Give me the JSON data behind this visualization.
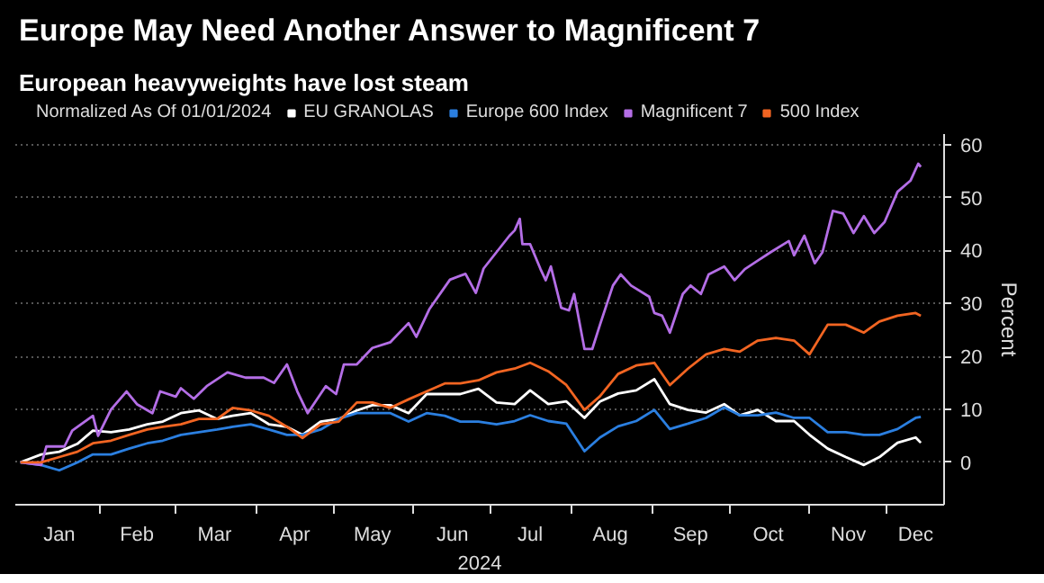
{
  "chart_data": {
    "type": "line",
    "title": "Europe May Need Another Answer to Magnificent 7",
    "subtitle": "European heavyweights have lost steam",
    "legend_title": "Normalized As Of 01/01/2024",
    "xlabel": "2024",
    "ylabel": "Percent",
    "x": [
      "2024-01-01",
      "2024-01-09",
      "2024-01-16",
      "2024-01-23",
      "2024-01-29",
      "2024-02-05",
      "2024-02-12",
      "2024-02-19",
      "2024-02-25",
      "2024-03-03",
      "2024-03-10",
      "2024-03-17",
      "2024-03-23",
      "2024-03-30",
      "2024-04-06",
      "2024-04-13",
      "2024-04-19",
      "2024-04-26",
      "2024-05-03",
      "2024-05-10",
      "2024-05-16",
      "2024-05-23",
      "2024-05-30",
      "2024-06-06",
      "2024-06-13",
      "2024-06-19",
      "2024-06-26",
      "2024-07-03",
      "2024-07-10",
      "2024-07-16",
      "2024-07-23",
      "2024-07-30",
      "2024-08-06",
      "2024-08-12",
      "2024-08-19",
      "2024-08-26",
      "2024-09-02",
      "2024-09-08",
      "2024-09-15",
      "2024-09-22",
      "2024-09-29",
      "2024-10-05",
      "2024-10-12",
      "2024-10-19",
      "2024-10-26",
      "2024-11-01",
      "2024-11-08",
      "2024-11-15",
      "2024-11-22",
      "2024-11-28",
      "2024-12-05",
      "2024-12-12",
      "2024-12-14"
    ],
    "series": [
      {
        "name": "EU GRANOLAS",
        "color": "#ffffff",
        "values": [
          0,
          1.5,
          2,
          3.5,
          6,
          5.7,
          6.2,
          7.2,
          7.7,
          9.3,
          9.8,
          8.2,
          8.8,
          9.3,
          7.2,
          6.7,
          5.2,
          7.7,
          8.2,
          9.8,
          10.8,
          10.8,
          9.3,
          12.9,
          12.9,
          12.9,
          13.9,
          11.3,
          11,
          13.6,
          11,
          11.5,
          8.4,
          11.5,
          13,
          13.6,
          15.7,
          11,
          9.9,
          9.4,
          11,
          8.9,
          9.9,
          7.8,
          7.8,
          5.2,
          2.6,
          1,
          -0.5,
          1,
          3.7,
          4.7,
          3.7
        ]
      },
      {
        "name": "Europe 600 Index",
        "color": "#2b7fe0",
        "values": [
          0,
          -0.5,
          -1.5,
          0,
          1.5,
          1.5,
          2.6,
          3.6,
          4.1,
          5.2,
          5.7,
          6.2,
          6.7,
          7.2,
          6.2,
          5.2,
          5.2,
          6.2,
          8.2,
          9.3,
          9.3,
          9.3,
          7.7,
          9.3,
          8.8,
          7.7,
          7.7,
          7.2,
          7.8,
          8.9,
          7.8,
          7.3,
          2.1,
          4.7,
          6.8,
          7.8,
          9.9,
          6.3,
          7.3,
          8.4,
          10.4,
          8.9,
          8.9,
          9.4,
          8.4,
          8.4,
          5.7,
          5.7,
          5.2,
          5.2,
          6.3,
          8.4,
          8.6
        ]
      },
      {
        "name": "Magnificent 7",
        "color": "#b46ee6",
        "x": [
          "2024-01-01",
          "2024-01-09",
          "2024-01-11",
          "2024-01-18",
          "2024-01-21",
          "2024-01-29",
          "2024-01-31",
          "2024-02-05",
          "2024-02-11",
          "2024-02-15",
          "2024-02-21",
          "2024-02-24",
          "2024-03-01",
          "2024-03-03",
          "2024-03-08",
          "2024-03-13",
          "2024-03-21",
          "2024-03-28",
          "2024-04-04",
          "2024-04-08",
          "2024-04-13",
          "2024-04-17",
          "2024-04-21",
          "2024-04-28",
          "2024-05-02",
          "2024-05-05",
          "2024-05-10",
          "2024-05-16",
          "2024-05-23",
          "2024-05-30",
          "2024-06-02",
          "2024-06-07",
          "2024-06-15",
          "2024-06-21",
          "2024-06-25",
          "2024-06-28",
          "2024-07-08",
          "2024-07-10",
          "2024-07-12",
          "2024-07-13",
          "2024-07-16",
          "2024-07-20",
          "2024-07-22",
          "2024-07-24",
          "2024-07-28",
          "2024-07-31",
          "2024-08-02",
          "2024-08-06",
          "2024-08-09",
          "2024-08-12",
          "2024-08-17",
          "2024-08-20",
          "2024-08-24",
          "2024-08-31",
          "2024-09-02",
          "2024-09-05",
          "2024-09-08",
          "2024-09-13",
          "2024-09-16",
          "2024-09-20",
          "2024-09-23",
          "2024-09-29",
          "2024-10-03",
          "2024-10-07",
          "2024-10-12",
          "2024-10-17",
          "2024-10-24",
          "2024-10-26",
          "2024-10-30",
          "2024-11-03",
          "2024-11-06",
          "2024-11-10",
          "2024-11-14",
          "2024-11-18",
          "2024-11-22",
          "2024-11-26",
          "2024-11-30",
          "2024-12-05",
          "2024-12-10",
          "2024-12-13",
          "2024-12-14"
        ],
        "values": [
          0,
          -0.5,
          3,
          3,
          6,
          8.8,
          5,
          10,
          13.4,
          11,
          9.3,
          13.4,
          12.4,
          14,
          12,
          14.4,
          17,
          16,
          16,
          15,
          18.5,
          13.4,
          9.3,
          14.4,
          12.9,
          18.5,
          18.5,
          21.6,
          22.7,
          26.3,
          23.7,
          28.9,
          34.5,
          35.6,
          32,
          36.6,
          42.8,
          43.8,
          46,
          41.2,
          41.2,
          36.5,
          34.4,
          37,
          29.2,
          28.7,
          31.8,
          21.4,
          21.4,
          26,
          33.4,
          35.5,
          33.4,
          31.3,
          28.2,
          27.7,
          24.5,
          31.8,
          33.4,
          31.8,
          35.5,
          37,
          34.4,
          36.5,
          38.1,
          39.7,
          41.8,
          39.1,
          42.8,
          37.6,
          39.7,
          47.5,
          47,
          43.3,
          46.5,
          43.3,
          45.4,
          51.1,
          53.2,
          56.4,
          55.8
        ]
      },
      {
        "name": "500 Index",
        "color": "#f26522",
        "values": [
          0,
          0,
          1,
          2,
          3.6,
          4.1,
          5.2,
          6.2,
          6.7,
          7.2,
          8.2,
          8.2,
          10.3,
          9.8,
          8.8,
          6.7,
          4.6,
          7.2,
          7.7,
          11.3,
          11.3,
          10.3,
          11.9,
          13.4,
          14.9,
          14.9,
          15.5,
          17,
          17.7,
          18.8,
          17.2,
          14.6,
          9.9,
          12.5,
          16.7,
          18.3,
          18.8,
          14.6,
          17.7,
          20.4,
          21.4,
          20.9,
          23,
          23.5,
          23,
          20.4,
          26,
          26,
          24.5,
          26.6,
          27.7,
          28.2,
          27.7
        ]
      }
    ],
    "xlim": [
      "2023-12-30",
      "2024-12-23"
    ],
    "xticks": [
      {
        "value": "2024-01-16",
        "label": "Jan"
      },
      {
        "value": "2024-02-01",
        "label": null
      },
      {
        "value": "2024-02-15",
        "label": "Feb"
      },
      {
        "value": "2024-03-01",
        "label": null
      },
      {
        "value": "2024-03-16",
        "label": "Mar"
      },
      {
        "value": "2024-04-01",
        "label": null
      },
      {
        "value": "2024-04-16",
        "label": "Apr"
      },
      {
        "value": "2024-05-01",
        "label": null
      },
      {
        "value": "2024-05-16",
        "label": "May"
      },
      {
        "value": "2024-06-01",
        "label": null
      },
      {
        "value": "2024-06-16",
        "label": "Jun"
      },
      {
        "value": "2024-07-01",
        "label": null
      },
      {
        "value": "2024-07-16",
        "label": "Jul"
      },
      {
        "value": "2024-08-01",
        "label": null
      },
      {
        "value": "2024-08-16",
        "label": "Aug"
      },
      {
        "value": "2024-09-01",
        "label": null
      },
      {
        "value": "2024-09-16",
        "label": "Sep"
      },
      {
        "value": "2024-10-01",
        "label": null
      },
      {
        "value": "2024-10-16",
        "label": "Oct"
      },
      {
        "value": "2024-11-01",
        "label": null
      },
      {
        "value": "2024-11-16",
        "label": "Nov"
      },
      {
        "value": "2024-12-01",
        "label": null
      },
      {
        "value": "2024-12-12",
        "label": "Dec"
      }
    ],
    "ylim": [
      -8,
      62
    ],
    "yticks": [
      0,
      10,
      20,
      30,
      40,
      50,
      60
    ],
    "grid": true,
    "legend": "top",
    "line_style": "solid",
    "marker": "none"
  }
}
